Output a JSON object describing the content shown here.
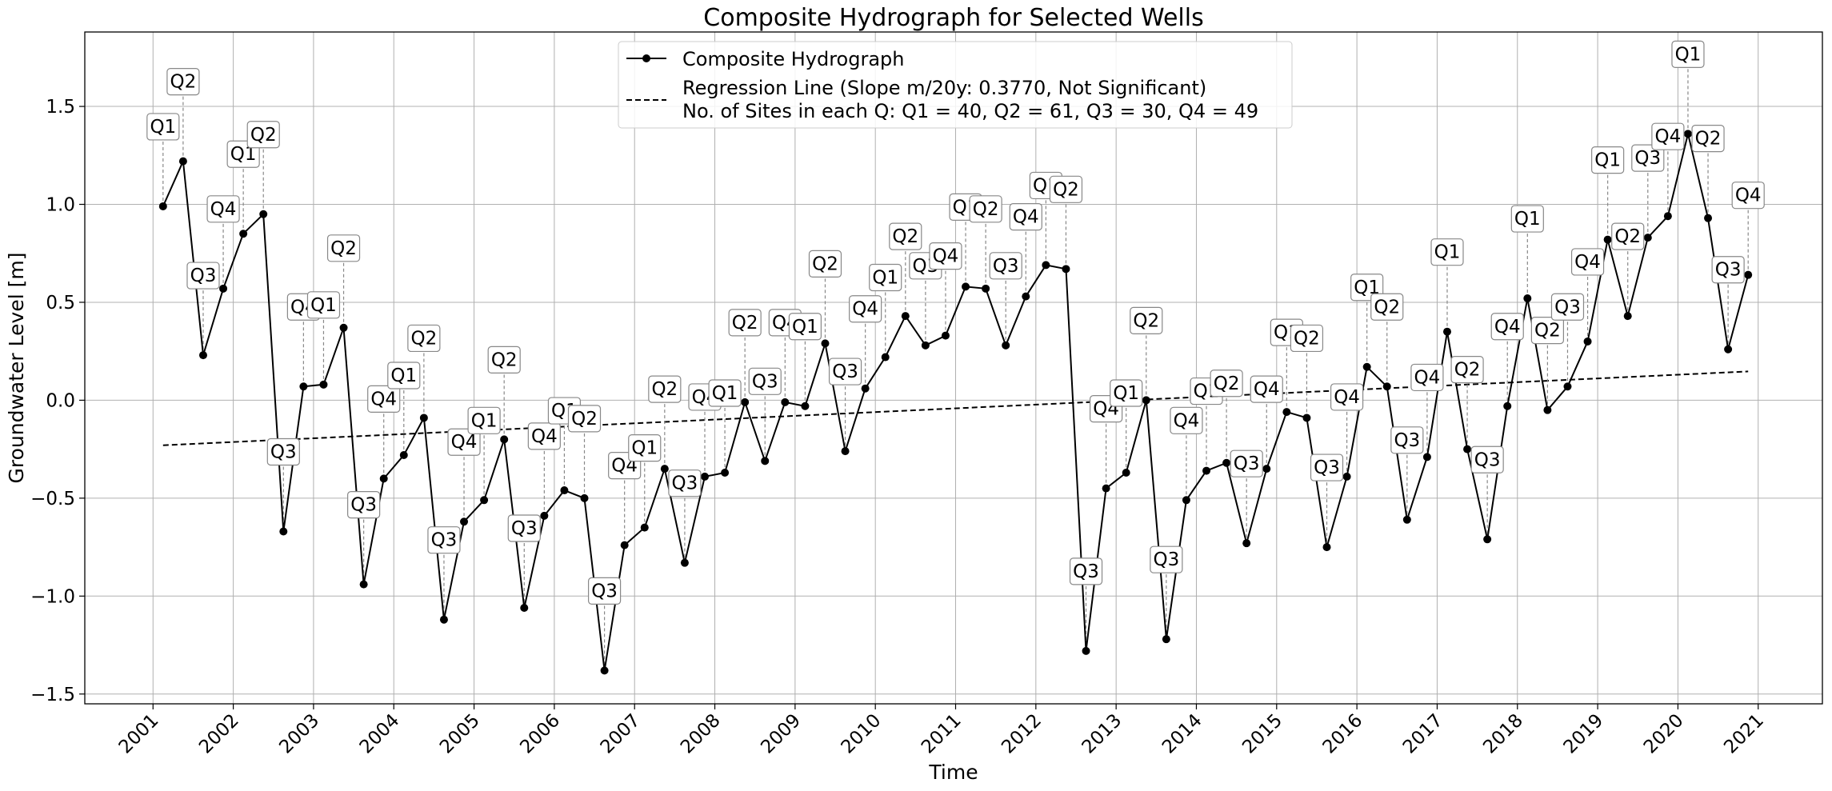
{
  "chart_data": {
    "type": "line",
    "title": "Composite Hydrograph for Selected Wells",
    "xlabel": "Time",
    "ylabel": "Groundwater Level [m]",
    "x_ticks": [
      "2001",
      "2002",
      "2003",
      "2004",
      "2005",
      "2006",
      "2007",
      "2008",
      "2009",
      "2010",
      "2011",
      "2012",
      "2013",
      "2014",
      "2015",
      "2016",
      "2017",
      "2018",
      "2019",
      "2020",
      "2021"
    ],
    "y_ticks": [
      "1.5",
      "1.0",
      "0.5",
      "0.0",
      "−0.5",
      "−1.0",
      "−1.5"
    ],
    "xlim": [
      2000.15,
      2021.8
    ],
    "ylim": [
      -1.55,
      1.88
    ],
    "grid": true,
    "legend_position": "top-center",
    "series": [
      {
        "name": "Composite Hydrograph",
        "color": "#000000",
        "style": "solid-with-markers",
        "points": [
          {
            "x": 2001.125,
            "y": 0.99,
            "q": "Q1"
          },
          {
            "x": 2001.375,
            "y": 1.22,
            "q": "Q2"
          },
          {
            "x": 2001.625,
            "y": 0.23,
            "q": "Q3"
          },
          {
            "x": 2001.875,
            "y": 0.57,
            "q": "Q4"
          },
          {
            "x": 2002.125,
            "y": 0.85,
            "q": "Q1"
          },
          {
            "x": 2002.375,
            "y": 0.95,
            "q": "Q2"
          },
          {
            "x": 2002.625,
            "y": -0.67,
            "q": "Q3"
          },
          {
            "x": 2002.875,
            "y": 0.07,
            "q": "Q4"
          },
          {
            "x": 2003.125,
            "y": 0.08,
            "q": "Q1"
          },
          {
            "x": 2003.375,
            "y": 0.37,
            "q": "Q2"
          },
          {
            "x": 2003.625,
            "y": -0.94,
            "q": "Q3"
          },
          {
            "x": 2003.875,
            "y": -0.4,
            "q": "Q4"
          },
          {
            "x": 2004.125,
            "y": -0.28,
            "q": "Q1"
          },
          {
            "x": 2004.375,
            "y": -0.09,
            "q": "Q2"
          },
          {
            "x": 2004.625,
            "y": -1.12,
            "q": "Q3"
          },
          {
            "x": 2004.875,
            "y": -0.62,
            "q": "Q4"
          },
          {
            "x": 2005.125,
            "y": -0.51,
            "q": "Q1"
          },
          {
            "x": 2005.375,
            "y": -0.2,
            "q": "Q2"
          },
          {
            "x": 2005.625,
            "y": -1.06,
            "q": "Q3"
          },
          {
            "x": 2005.875,
            "y": -0.59,
            "q": "Q4"
          },
          {
            "x": 2006.125,
            "y": -0.46,
            "q": "Q1"
          },
          {
            "x": 2006.375,
            "y": -0.5,
            "q": "Q2"
          },
          {
            "x": 2006.625,
            "y": -1.38,
            "q": "Q3"
          },
          {
            "x": 2006.875,
            "y": -0.74,
            "q": "Q4"
          },
          {
            "x": 2007.125,
            "y": -0.65,
            "q": "Q1"
          },
          {
            "x": 2007.375,
            "y": -0.35,
            "q": "Q2"
          },
          {
            "x": 2007.625,
            "y": -0.83,
            "q": "Q3"
          },
          {
            "x": 2007.875,
            "y": -0.39,
            "q": "Q4"
          },
          {
            "x": 2008.125,
            "y": -0.37,
            "q": "Q1"
          },
          {
            "x": 2008.375,
            "y": -0.01,
            "q": "Q2"
          },
          {
            "x": 2008.625,
            "y": -0.31,
            "q": "Q3"
          },
          {
            "x": 2008.875,
            "y": -0.01,
            "q": "Q4"
          },
          {
            "x": 2009.125,
            "y": -0.03,
            "q": "Q1"
          },
          {
            "x": 2009.375,
            "y": 0.29,
            "q": "Q2"
          },
          {
            "x": 2009.625,
            "y": -0.26,
            "q": "Q3"
          },
          {
            "x": 2009.875,
            "y": 0.06,
            "q": "Q4"
          },
          {
            "x": 2010.125,
            "y": 0.22,
            "q": "Q1"
          },
          {
            "x": 2010.375,
            "y": 0.43,
            "q": "Q2"
          },
          {
            "x": 2010.625,
            "y": 0.28,
            "q": "Q3"
          },
          {
            "x": 2010.875,
            "y": 0.33,
            "q": "Q4"
          },
          {
            "x": 2011.125,
            "y": 0.58,
            "q": "Q1"
          },
          {
            "x": 2011.375,
            "y": 0.57,
            "q": "Q2"
          },
          {
            "x": 2011.625,
            "y": 0.28,
            "q": "Q3"
          },
          {
            "x": 2011.875,
            "y": 0.53,
            "q": "Q4"
          },
          {
            "x": 2012.125,
            "y": 0.69,
            "q": "Q1"
          },
          {
            "x": 2012.375,
            "y": 0.67,
            "q": "Q2"
          },
          {
            "x": 2012.625,
            "y": -1.28,
            "q": "Q3"
          },
          {
            "x": 2012.875,
            "y": -0.45,
            "q": "Q4"
          },
          {
            "x": 2013.125,
            "y": -0.37,
            "q": "Q1"
          },
          {
            "x": 2013.375,
            "y": 0.0,
            "q": "Q2"
          },
          {
            "x": 2013.625,
            "y": -1.22,
            "q": "Q3"
          },
          {
            "x": 2013.875,
            "y": -0.51,
            "q": "Q4"
          },
          {
            "x": 2014.125,
            "y": -0.36,
            "q": "Q1"
          },
          {
            "x": 2014.375,
            "y": -0.32,
            "q": "Q2"
          },
          {
            "x": 2014.625,
            "y": -0.73,
            "q": "Q3"
          },
          {
            "x": 2014.875,
            "y": -0.35,
            "q": "Q4"
          },
          {
            "x": 2015.125,
            "y": -0.06,
            "q": "Q1"
          },
          {
            "x": 2015.375,
            "y": -0.09,
            "q": "Q2"
          },
          {
            "x": 2015.625,
            "y": -0.75,
            "q": "Q3"
          },
          {
            "x": 2015.875,
            "y": -0.39,
            "q": "Q4"
          },
          {
            "x": 2016.125,
            "y": 0.17,
            "q": "Q1"
          },
          {
            "x": 2016.375,
            "y": 0.07,
            "q": "Q2"
          },
          {
            "x": 2016.625,
            "y": -0.61,
            "q": "Q3"
          },
          {
            "x": 2016.875,
            "y": -0.29,
            "q": "Q4"
          },
          {
            "x": 2017.125,
            "y": 0.35,
            "q": "Q1"
          },
          {
            "x": 2017.375,
            "y": -0.25,
            "q": "Q2"
          },
          {
            "x": 2017.625,
            "y": -0.71,
            "q": "Q3"
          },
          {
            "x": 2017.875,
            "y": -0.03,
            "q": "Q4"
          },
          {
            "x": 2018.125,
            "y": 0.52,
            "q": "Q1"
          },
          {
            "x": 2018.375,
            "y": -0.05,
            "q": "Q2"
          },
          {
            "x": 2018.625,
            "y": 0.07,
            "q": "Q3"
          },
          {
            "x": 2018.875,
            "y": 0.3,
            "q": "Q4"
          },
          {
            "x": 2019.125,
            "y": 0.82,
            "q": "Q1"
          },
          {
            "x": 2019.375,
            "y": 0.43,
            "q": "Q2"
          },
          {
            "x": 2019.625,
            "y": 0.83,
            "q": "Q3"
          },
          {
            "x": 2019.875,
            "y": 0.94,
            "q": "Q4"
          },
          {
            "x": 2020.125,
            "y": 1.36,
            "q": "Q1"
          },
          {
            "x": 2020.375,
            "y": 0.93,
            "q": "Q2"
          },
          {
            "x": 2020.625,
            "y": 0.26,
            "q": "Q3"
          },
          {
            "x": 2020.875,
            "y": 0.64,
            "q": "Q4"
          }
        ]
      },
      {
        "name": "Regression Line (Slope m/20y: 0.3770, Not Significant)",
        "color": "#000000",
        "style": "dashed",
        "points": [
          {
            "x": 2001.125,
            "y": -0.23
          },
          {
            "x": 2020.875,
            "y": 0.147
          }
        ]
      }
    ],
    "legend": [
      "Composite Hydrograph",
      "Regression Line (Slope m/20y: 0.3770, Not Significant)",
      "No. of Sites in each Q: Q1 = 40, Q2 = 61, Q3 = 30, Q4 = 49"
    ]
  }
}
